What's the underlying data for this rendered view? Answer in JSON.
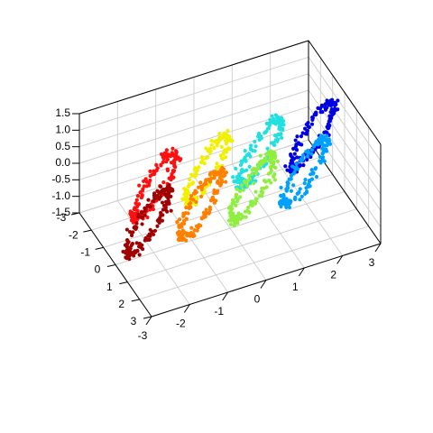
{
  "chart_data": {
    "type": "scatter",
    "subtype": "3d-scatter",
    "title": "",
    "xlabel": "",
    "ylabel": "",
    "zlabel": "",
    "xlim": [
      -3,
      3
    ],
    "ylim": [
      -3,
      3
    ],
    "zlim": [
      -1.5,
      1.5
    ],
    "x_ticks": [
      "-3",
      "-2",
      "-1",
      "0",
      "1",
      "2",
      "3"
    ],
    "y_ticks": [
      "-3",
      "-2",
      "-1",
      "0",
      "1",
      "2",
      "3"
    ],
    "z_ticks": [
      "-1.5",
      "-1.0",
      "-0.5",
      "0.0",
      "0.5",
      "1.0",
      "1.5"
    ],
    "grid": true,
    "legend": "none",
    "color_scale": "jet",
    "description_series": [
      {
        "loop_index": 1,
        "color": "#0000e0"
      },
      {
        "loop_index": 2,
        "color": "#00a0ff"
      },
      {
        "loop_index": 3,
        "color": "#20e0e0"
      },
      {
        "loop_index": 4,
        "color": "#90ee40"
      },
      {
        "loop_index": 5,
        "color": "#f0f000"
      },
      {
        "loop_index": 6,
        "color": "#ff8000"
      },
      {
        "loop_index": 7,
        "color": "#ff1010"
      },
      {
        "loop_index": 8,
        "color": "#a00000"
      }
    ]
  }
}
